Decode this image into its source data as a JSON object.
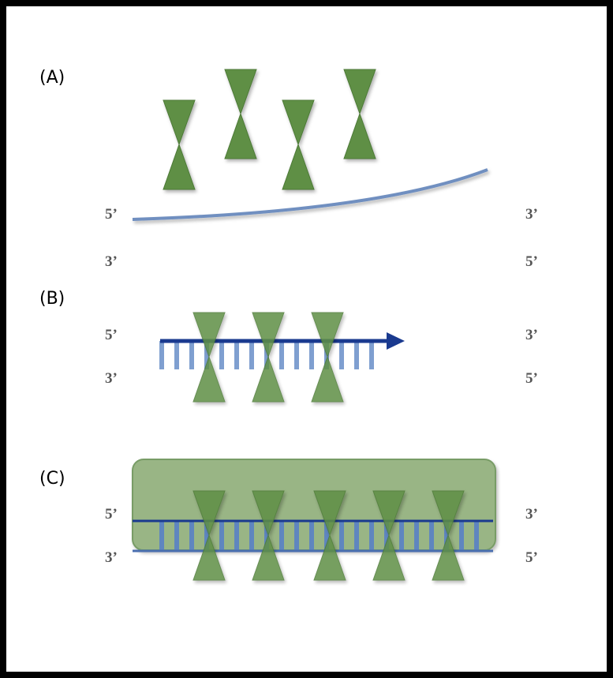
{
  "panels": [
    {
      "label": "(A)",
      "left_top": "5’",
      "left_bottom": "3’",
      "right_top": "3’",
      "right_bottom": "5’"
    },
    {
      "label": "(B)",
      "left_top": "5’",
      "left_bottom": "3’",
      "right_top": "3’",
      "right_bottom": "5’"
    },
    {
      "label": "(C)",
      "left_top": "5’",
      "left_bottom": "3’",
      "right_top": "3’",
      "right_bottom": "5’"
    }
  ]
}
